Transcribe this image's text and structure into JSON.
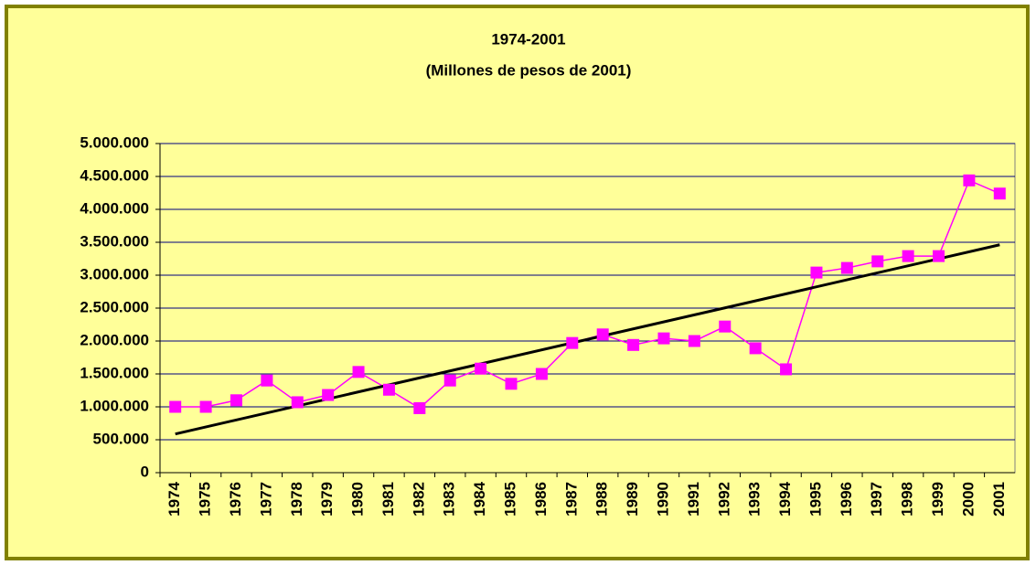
{
  "chart_data": {
    "type": "line",
    "title": "1974-2001",
    "subtitle": "(Millones de pesos de 2001)",
    "categories": [
      "1974",
      "1975",
      "1976",
      "1977",
      "1978",
      "1979",
      "1980",
      "1981",
      "1982",
      "1983",
      "1984",
      "1985",
      "1986",
      "1987",
      "1988",
      "1989",
      "1990",
      "1991",
      "1992",
      "1993",
      "1994",
      "1995",
      "1996",
      "1997",
      "1998",
      "1999",
      "2000",
      "2001"
    ],
    "series": [
      {
        "color": "#ff00ff",
        "values": [
          1000000,
          1000000,
          1100000,
          1400000,
          1070000,
          1180000,
          1530000,
          1260000,
          980000,
          1400000,
          1580000,
          1350000,
          1500000,
          1970000,
          2100000,
          1940000,
          2040000,
          2000000,
          2220000,
          1890000,
          1570000,
          3040000,
          3110000,
          3210000,
          3290000,
          3290000,
          4440000,
          4240000
        ]
      }
    ],
    "trendline": {
      "type": "linear",
      "color": "#000000"
    },
    "ylim": [
      0,
      5000000
    ],
    "yticks": [
      0,
      {
        "value": 500000,
        "label": "500.000"
      },
      {
        "value": 1000000,
        "label": "1.000.000"
      },
      {
        "value": 1500000,
        "label": "1.500.000"
      },
      {
        "value": 2000000,
        "label": "2.000.000"
      },
      {
        "value": 2500000,
        "label": "2.500.000"
      },
      {
        "value": 3000000,
        "label": "3.000.000"
      },
      {
        "value": 3500000,
        "label": "3.500.000"
      },
      {
        "value": 4000000,
        "label": "4.000.000"
      },
      {
        "value": 4500000,
        "label": "4.500.000"
      },
      {
        "value": 5000000,
        "label": "5.000.000"
      }
    ],
    "grid": true
  }
}
